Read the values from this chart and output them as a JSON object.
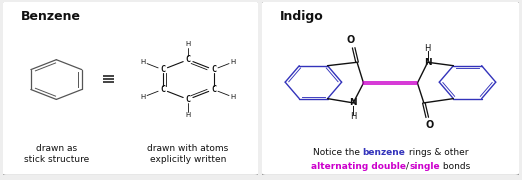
{
  "bg_color": "#eeeeee",
  "panel_bg": "#ffffff",
  "border_color": "#999999",
  "title_benzene": "Benzene",
  "title_indigo": "Indigo",
  "label_stick": "drawn as\nstick structure",
  "label_explicit": "drawn with atoms\nexplicitly written",
  "blue_color": "#3333bb",
  "magenta_color": "#cc00cc",
  "black_color": "#111111",
  "font_size_title": 9,
  "font_size_label": 6.5,
  "font_size_atom": 6.5,
  "font_size_notice": 6.5
}
